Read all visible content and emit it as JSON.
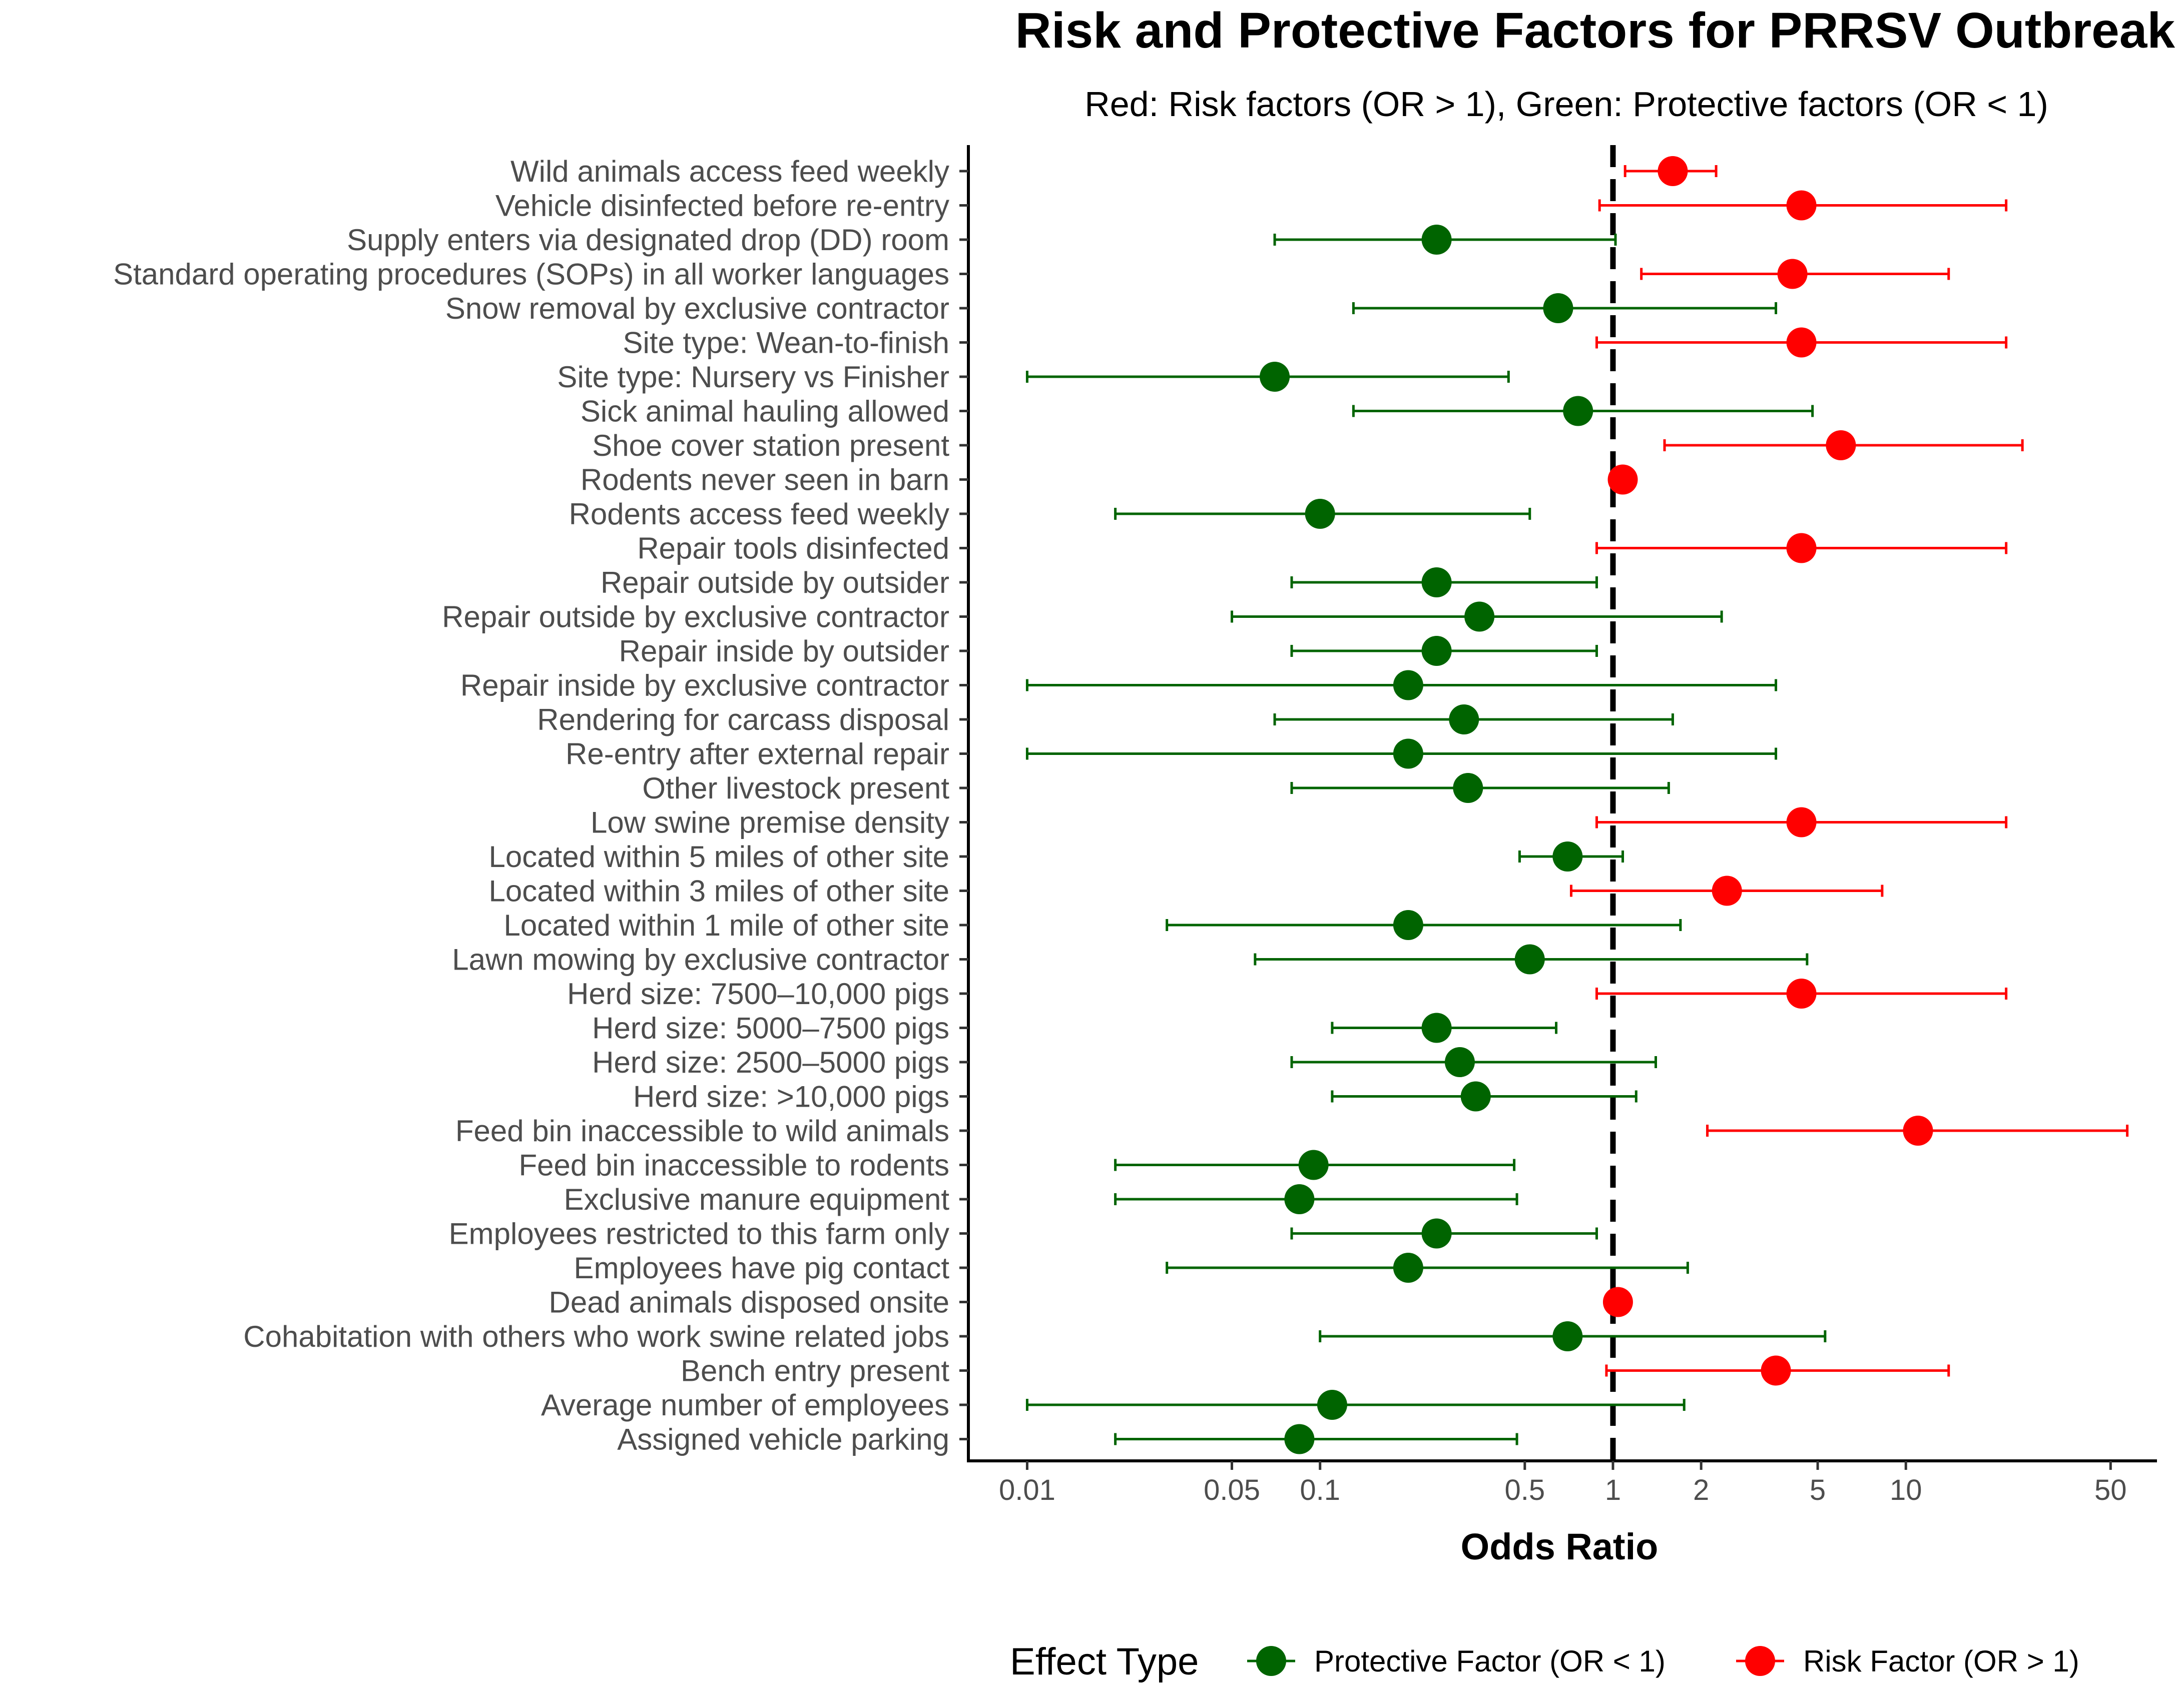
{
  "chart_data": {
    "type": "scatter",
    "subtype": "forest-plot",
    "title": "Risk and Protective Factors for PRRSV Outbreak",
    "subtitle": "Red: Risk factors (OR > 1), Green: Protective factors (OR < 1)",
    "xlabel": "Odds Ratio",
    "ylabel": "",
    "x_scale": "log10",
    "xlim": [
      0.0063,
      72
    ],
    "x_ticks": [
      0.01,
      0.05,
      0.1,
      0.5,
      1,
      2,
      5,
      10,
      50
    ],
    "x_tick_labels": [
      "0.01",
      "0.05",
      "0.1",
      "0.5",
      "1",
      "2",
      "5",
      "10",
      "50"
    ],
    "reference_line": 1,
    "colors": {
      "risk": "#ff0000",
      "protective": "#006400",
      "reference": "#000000"
    },
    "legend": {
      "title": "Effect Type",
      "position": "bottom",
      "entries": [
        {
          "label": "Protective Factor (OR < 1)",
          "type": "protective"
        },
        {
          "label": "Risk Factor (OR > 1)",
          "type": "risk"
        }
      ]
    },
    "points": [
      {
        "label": "Wild animals access feed weekly",
        "or": 1.6,
        "lower": 1.1,
        "upper": 2.25,
        "type": "risk"
      },
      {
        "label": "Vehicle disinfected before re-entry",
        "or": 4.4,
        "lower": 0.9,
        "upper": 22,
        "type": "risk"
      },
      {
        "label": "Supply enters via designated drop (DD) room",
        "or": 0.25,
        "lower": 0.07,
        "upper": 1.02,
        "type": "protective"
      },
      {
        "label": "Standard operating procedures (SOPs) in all worker languages",
        "or": 4.1,
        "lower": 1.25,
        "upper": 14,
        "type": "risk"
      },
      {
        "label": "Snow removal by exclusive contractor",
        "or": 0.65,
        "lower": 0.13,
        "upper": 3.6,
        "type": "protective"
      },
      {
        "label": "Site type: Wean-to-finish",
        "or": 4.4,
        "lower": 0.88,
        "upper": 22,
        "type": "risk"
      },
      {
        "label": "Site type: Nursery vs Finisher",
        "or": 0.07,
        "lower": 0.01,
        "upper": 0.44,
        "type": "protective"
      },
      {
        "label": "Sick animal hauling allowed",
        "or": 0.76,
        "lower": 0.13,
        "upper": 4.8,
        "type": "protective"
      },
      {
        "label": "Shoe cover station present",
        "or": 6.0,
        "lower": 1.5,
        "upper": 25,
        "type": "risk"
      },
      {
        "label": "Rodents never seen in barn",
        "or": 1.08,
        "lower": 1.08,
        "upper": 1.08,
        "type": "risk"
      },
      {
        "label": "Rodents access feed weekly",
        "or": 0.1,
        "lower": 0.02,
        "upper": 0.52,
        "type": "protective"
      },
      {
        "label": "Repair tools disinfected",
        "or": 4.4,
        "lower": 0.88,
        "upper": 22,
        "type": "risk"
      },
      {
        "label": "Repair outside by outsider",
        "or": 0.25,
        "lower": 0.08,
        "upper": 0.88,
        "type": "protective"
      },
      {
        "label": "Repair outside by exclusive contractor",
        "or": 0.35,
        "lower": 0.05,
        "upper": 2.35,
        "type": "protective"
      },
      {
        "label": "Repair inside by outsider",
        "or": 0.25,
        "lower": 0.08,
        "upper": 0.88,
        "type": "protective"
      },
      {
        "label": "Repair inside by exclusive contractor",
        "or": 0.2,
        "lower": 0.01,
        "upper": 3.6,
        "type": "protective"
      },
      {
        "label": "Rendering for carcass disposal",
        "or": 0.31,
        "lower": 0.07,
        "upper": 1.6,
        "type": "protective"
      },
      {
        "label": "Re-entry after external repair",
        "or": 0.2,
        "lower": 0.01,
        "upper": 3.6,
        "type": "protective"
      },
      {
        "label": "Other livestock present",
        "or": 0.32,
        "lower": 0.08,
        "upper": 1.55,
        "type": "protective"
      },
      {
        "label": "Low swine premise density",
        "or": 4.4,
        "lower": 0.88,
        "upper": 22,
        "type": "risk"
      },
      {
        "label": "Located within 5 miles of other site",
        "or": 0.7,
        "lower": 0.48,
        "upper": 1.08,
        "type": "protective"
      },
      {
        "label": "Located within 3 miles of other site",
        "or": 2.45,
        "lower": 0.72,
        "upper": 8.3,
        "type": "risk"
      },
      {
        "label": "Located within 1 mile of other site",
        "or": 0.2,
        "lower": 0.03,
        "upper": 1.7,
        "type": "protective"
      },
      {
        "label": "Lawn mowing by exclusive contractor",
        "or": 0.52,
        "lower": 0.06,
        "upper": 4.6,
        "type": "protective"
      },
      {
        "label": "Herd size: 7500–10,000 pigs",
        "or": 4.4,
        "lower": 0.88,
        "upper": 22,
        "type": "risk"
      },
      {
        "label": "Herd size: 5000–7500 pigs",
        "or": 0.25,
        "lower": 0.11,
        "upper": 0.64,
        "type": "protective"
      },
      {
        "label": "Herd size: 2500–5000 pigs",
        "or": 0.3,
        "lower": 0.08,
        "upper": 1.4,
        "type": "protective"
      },
      {
        "label": "Herd size: >10,000 pigs",
        "or": 0.34,
        "lower": 0.11,
        "upper": 1.2,
        "type": "protective"
      },
      {
        "label": "Feed bin inaccessible to wild animals",
        "or": 11,
        "lower": 2.1,
        "upper": 57,
        "type": "risk"
      },
      {
        "label": "Feed bin inaccessible to rodents",
        "or": 0.095,
        "lower": 0.02,
        "upper": 0.46,
        "type": "protective"
      },
      {
        "label": "Exclusive manure equipment",
        "or": 0.085,
        "lower": 0.02,
        "upper": 0.47,
        "type": "protective"
      },
      {
        "label": "Employees restricted to this farm only",
        "or": 0.25,
        "lower": 0.08,
        "upper": 0.88,
        "type": "protective"
      },
      {
        "label": "Employees have pig contact",
        "or": 0.2,
        "lower": 0.03,
        "upper": 1.8,
        "type": "protective"
      },
      {
        "label": "Dead animals disposed onsite",
        "or": 1.04,
        "lower": 1.04,
        "upper": 1.04,
        "type": "risk"
      },
      {
        "label": "Cohabitation with others who work swine related jobs",
        "or": 0.7,
        "lower": 0.1,
        "upper": 5.3,
        "type": "protective"
      },
      {
        "label": "Bench entry present",
        "or": 3.6,
        "lower": 0.95,
        "upper": 14,
        "type": "risk"
      },
      {
        "label": "Average number of employees",
        "or": 0.11,
        "lower": 0.01,
        "upper": 1.75,
        "type": "protective"
      },
      {
        "label": "Assigned vehicle parking",
        "or": 0.085,
        "lower": 0.02,
        "upper": 0.47,
        "type": "protective"
      }
    ]
  }
}
